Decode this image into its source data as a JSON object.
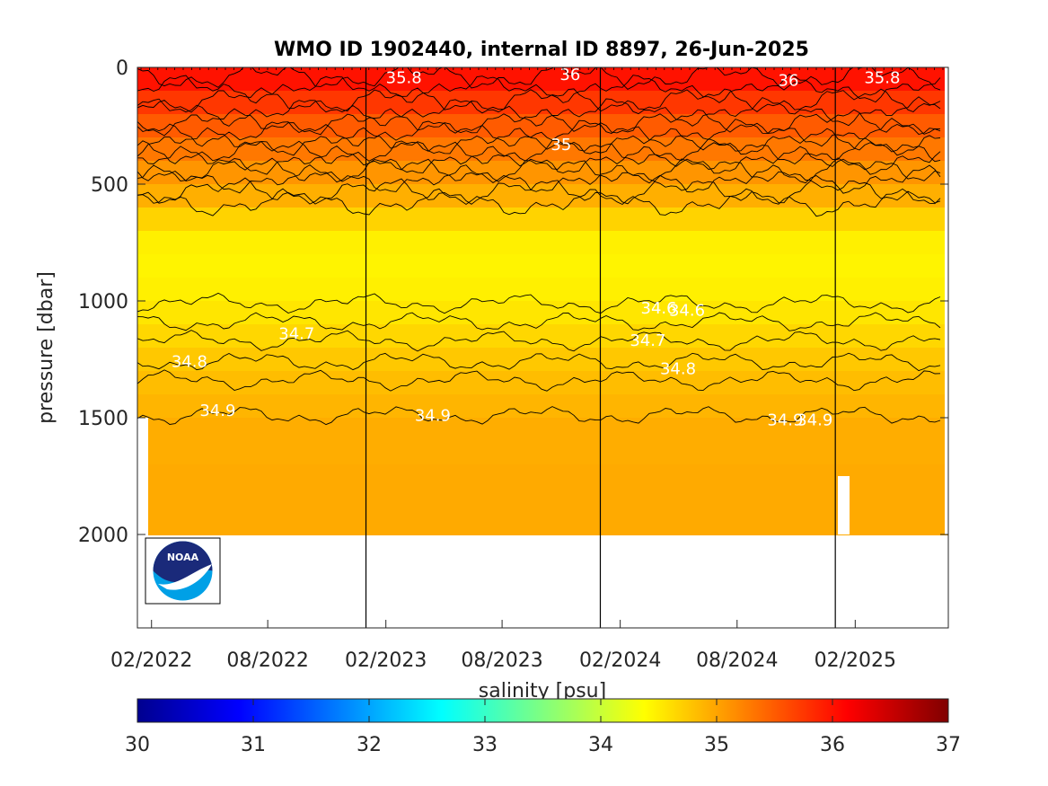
{
  "chart_data": {
    "type": "heatmap",
    "title": "WMO ID 1902440, internal ID 8897, 26-Jun-2025",
    "ylabel": "pressure [dbar]",
    "ylim": [
      0,
      2400
    ],
    "y_reversed": true,
    "y_ticks": [
      "0",
      "500",
      "1000",
      "1500",
      "2000"
    ],
    "y_tick_values": [
      0,
      500,
      1000,
      1500,
      2000
    ],
    "x_range": [
      "2022-01-10",
      "2025-06-26"
    ],
    "x_ticks": [
      "02/2022",
      "08/2022",
      "02/2023",
      "08/2023",
      "02/2024",
      "08/2024",
      "02/2025"
    ],
    "x_tick_dates": [
      "2022-02-01",
      "2022-08-01",
      "2023-02-01",
      "2023-08-01",
      "2024-02-01",
      "2024-08-01",
      "2025-02-01"
    ],
    "year_lines": [
      "2023-01-01",
      "2024-01-01",
      "2025-01-01"
    ],
    "grid": false,
    "colorbar": {
      "label": "salinity [psu]",
      "range": [
        30,
        37
      ],
      "ticks": [
        "30",
        "31",
        "32",
        "33",
        "34",
        "35",
        "36",
        "37"
      ],
      "tick_values": [
        30,
        31,
        32,
        33,
        34,
        35,
        36,
        37
      ],
      "placement": "bottom",
      "colormap": "jet"
    },
    "salinity_profile": {
      "pressure": [
        0,
        100,
        200,
        300,
        400,
        500,
        600,
        700,
        800,
        900,
        1000,
        1100,
        1200,
        1300,
        1400,
        1500,
        1700,
        2000
      ],
      "salinity": [
        36.1,
        35.9,
        35.6,
        35.4,
        35.2,
        35.0,
        34.85,
        34.5,
        34.45,
        34.45,
        34.5,
        34.6,
        34.7,
        34.8,
        34.85,
        34.92,
        34.95,
        34.97
      ]
    },
    "max_pressure": 2000,
    "contour_labels": [
      {
        "text": "36",
        "date": "2023-11-15",
        "p": 30
      },
      {
        "text": "36",
        "date": "2024-10-20",
        "p": 55
      },
      {
        "text": "35.8",
        "date": "2023-03-01",
        "p": 45
      },
      {
        "text": "35.8",
        "date": "2025-03-15",
        "p": 45
      },
      {
        "text": "35",
        "date": "2023-11-01",
        "p": 330
      },
      {
        "text": "34.6",
        "date": "2024-04-01",
        "p": 1030
      },
      {
        "text": "34.6",
        "date": "2024-05-15",
        "p": 1040
      },
      {
        "text": "34.7",
        "date": "2022-09-15",
        "p": 1140
      },
      {
        "text": "34.7",
        "date": "2024-03-15",
        "p": 1170
      },
      {
        "text": "34.8",
        "date": "2022-04-01",
        "p": 1260
      },
      {
        "text": "34.8",
        "date": "2024-05-01",
        "p": 1290
      },
      {
        "text": "34.9",
        "date": "2022-05-15",
        "p": 1470
      },
      {
        "text": "34.9",
        "date": "2023-04-15",
        "p": 1490
      },
      {
        "text": "34.9",
        "date": "2024-10-15",
        "p": 1510
      },
      {
        "text": "34.9",
        "date": "2024-11-30",
        "p": 1510
      }
    ],
    "logo": "noaa-logo"
  }
}
